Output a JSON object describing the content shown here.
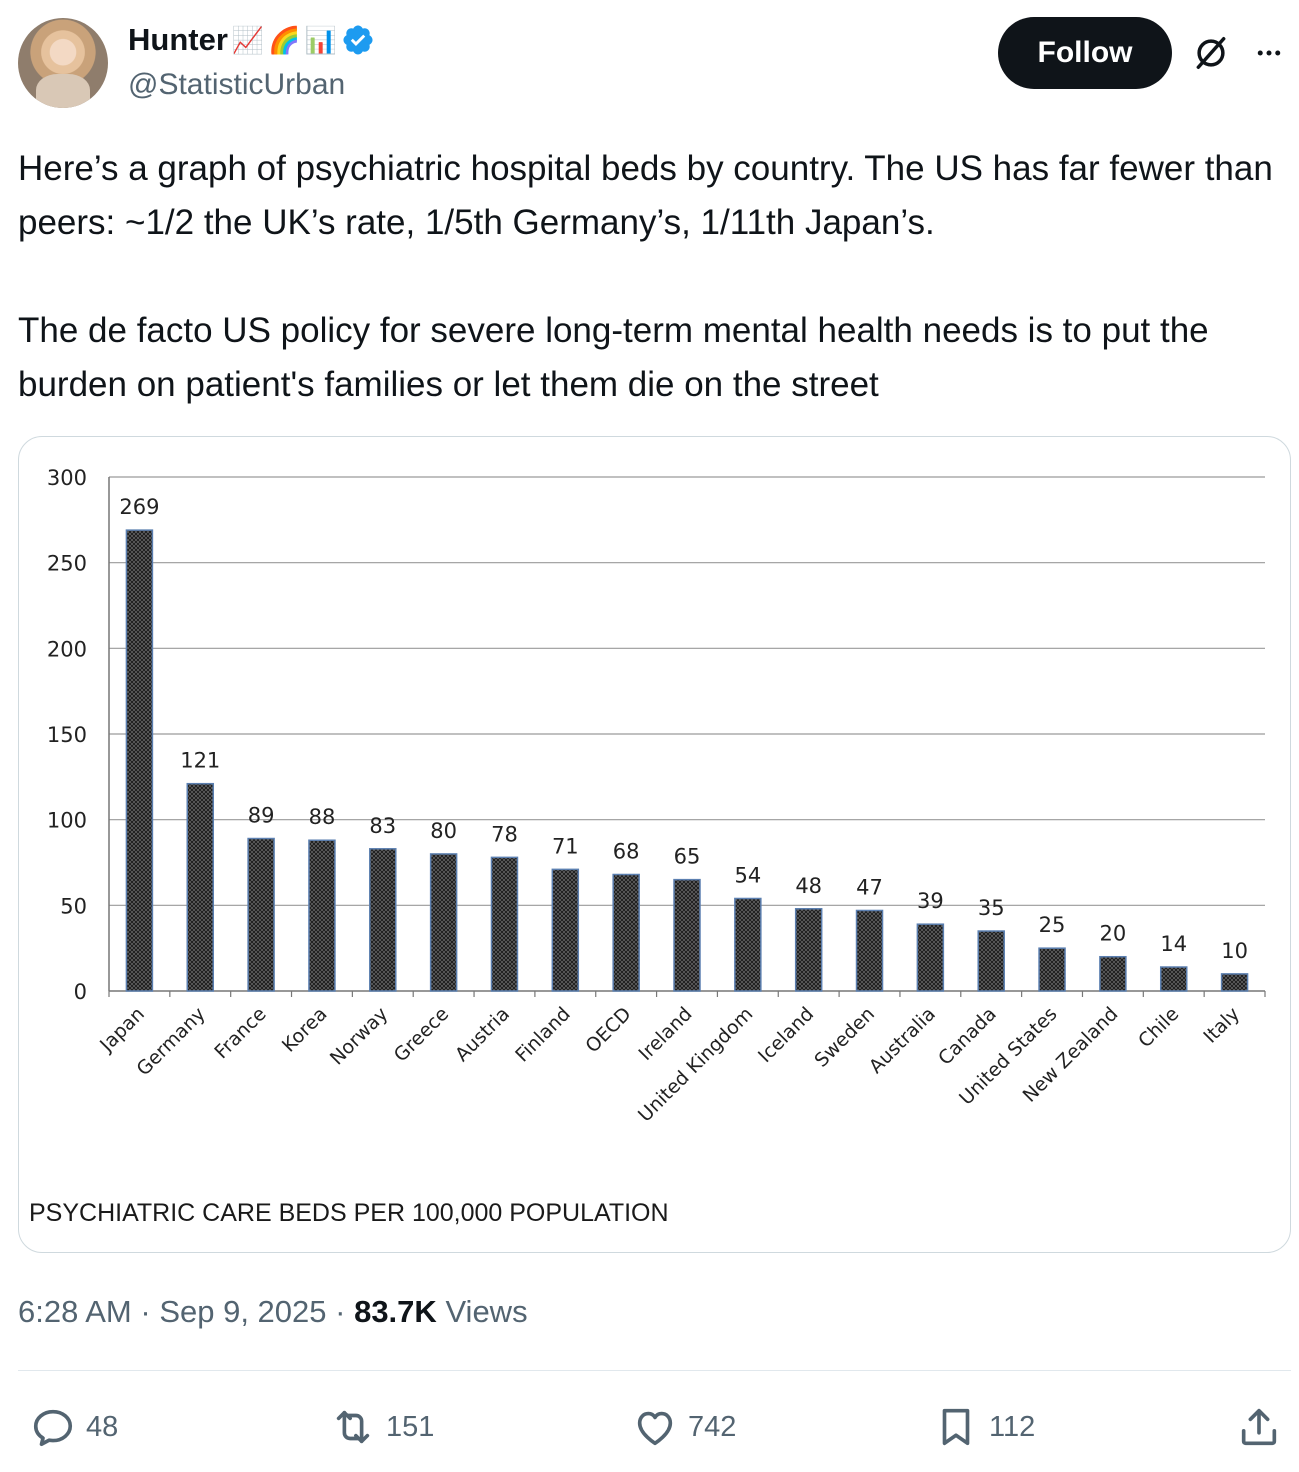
{
  "author": {
    "display_name": "Hunter",
    "emojis": [
      "📈",
      "🌈",
      "📊"
    ],
    "handle": "@StatisticUrban",
    "verified": true,
    "verified_color": "#1d9bf0"
  },
  "header": {
    "follow_label": "Follow",
    "grok_icon": "grok-icon",
    "more_icon": "more-icon"
  },
  "tweet": {
    "text": "Here’s a graph of psychiatric hospital beds by country. The US has far fewer than peers: ~1/2 the UK’s rate, 1/5th Germany’s, 1/11th Japan’s.\n\nThe de facto US policy for severe long-term mental health needs is to put the burden on patient's families or let them die on the street"
  },
  "chart_data": {
    "type": "bar",
    "title": "PSYCHIATRIC CARE BEDS PER 100,000 POPULATION",
    "categories": [
      "Japan",
      "Germany",
      "France",
      "Korea",
      "Norway",
      "Greece",
      "Austria",
      "Finland",
      "OECD",
      "Ireland",
      "United Kingdom",
      "Iceland",
      "Sweden",
      "Australia",
      "Canada",
      "United States",
      "New Zealand",
      "Chile",
      "Italy"
    ],
    "values": [
      269,
      121,
      89,
      88,
      83,
      80,
      78,
      71,
      68,
      65,
      54,
      48,
      47,
      39,
      35,
      25,
      20,
      14,
      10
    ],
    "ylim": [
      0,
      300
    ],
    "yticks": [
      0,
      50,
      100,
      150,
      200,
      250,
      300
    ],
    "grid": true,
    "xlabel": "",
    "ylabel": "",
    "bar_color": "#3a3a3a",
    "bar_border_color": "#5b7fb0"
  },
  "meta": {
    "time": "6:28 AM",
    "date": "Sep 9, 2025",
    "views_count": "83.7K",
    "views_label": "Views"
  },
  "actions": {
    "replies": "48",
    "reposts": "151",
    "likes": "742",
    "bookmarks": "112"
  }
}
